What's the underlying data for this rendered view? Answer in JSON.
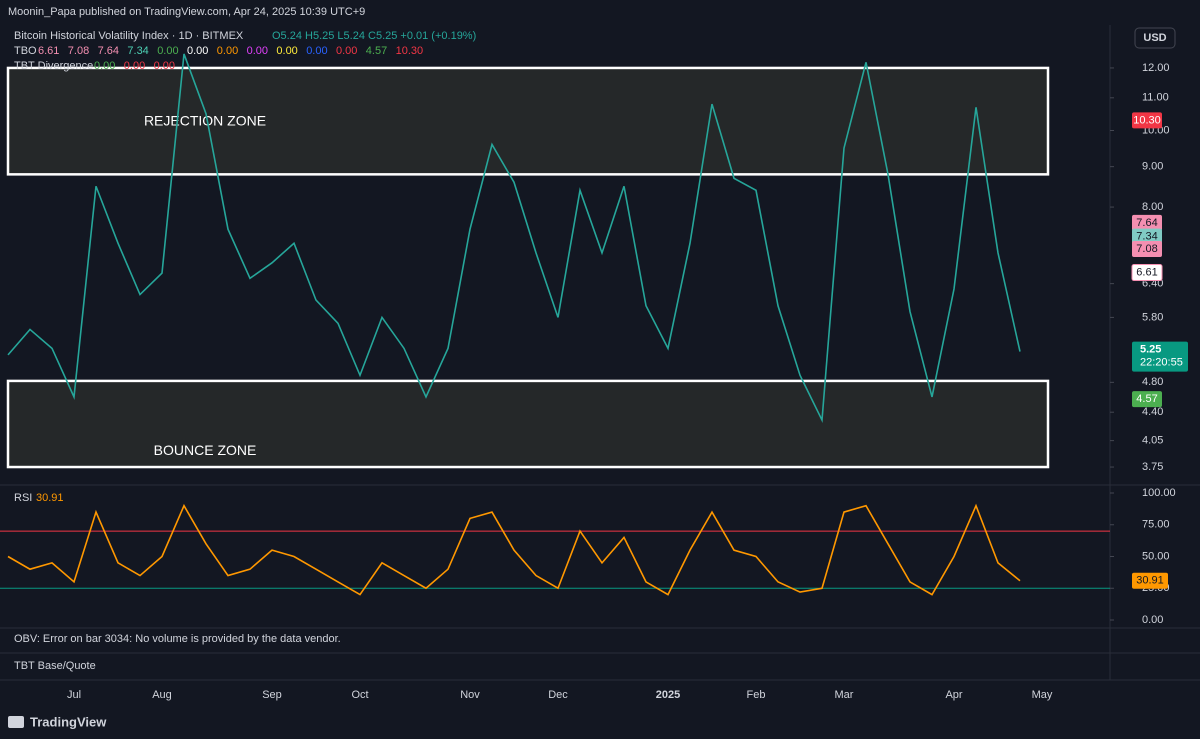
{
  "header": {
    "publisher": "Moonin_Papa published on TradingView.com, Apr 24, 2025 10:39 UTC+9",
    "currency": "USD",
    "footer": "TradingView"
  },
  "panes": {
    "obv": "OBV: Error on bar 3034: No volume is provided by the data vendor.",
    "tbt": "TBT Base/Quote"
  },
  "chart_data": [
    {
      "type": "line",
      "title": "Bitcoin Historical Volatility Index · 1D · BITMEX",
      "ohlc": "O5.24 H5.25 L5.24 C5.25 +0.01 (+0.19%)",
      "indicators": [
        {
          "name": "TBO",
          "readings": [
            "6.61",
            "7.08",
            "7.64",
            "7.34",
            "0.00",
            "0.00",
            "0.00",
            "0.00",
            "0.00",
            "0.00",
            "0.00",
            "4.57",
            "10.30"
          ],
          "colors": [
            "#f48fb1",
            "#f48fb1",
            "#f48fb1",
            "#4dd0b4",
            "#4caf50",
            "#ffffff",
            "#ff9800",
            "#e040fb",
            "#ffeb3b",
            "#2962ff",
            "#f23645",
            "#4caf50",
            "#f23645"
          ]
        },
        {
          "name": "TBT Divergence",
          "readings": [
            "0.00",
            "0.00",
            "0.00"
          ],
          "colors": [
            "#4caf50",
            "#f23645",
            "#f23645"
          ]
        }
      ],
      "categories": [
        null,
        null,
        null,
        "Jul",
        null,
        null,
        null,
        "Aug",
        null,
        null,
        null,
        null,
        "Sep",
        null,
        null,
        null,
        "Oct",
        null,
        null,
        null,
        null,
        "Nov",
        null,
        null,
        null,
        "Dec",
        null,
        null,
        null,
        null,
        "2025",
        null,
        null,
        null,
        "Feb",
        null,
        null,
        null,
        "Mar",
        null,
        null,
        null,
        null,
        "Apr",
        null,
        null,
        null,
        "May",
        null
      ],
      "values": [
        5.2,
        5.6,
        5.3,
        4.6,
        8.5,
        7.2,
        6.2,
        6.6,
        12.5,
        10.5,
        7.5,
        6.5,
        6.8,
        7.2,
        6.1,
        5.7,
        4.9,
        5.8,
        5.3,
        4.6,
        5.3,
        7.5,
        9.6,
        8.6,
        7.0,
        5.8,
        8.4,
        7.0,
        8.5,
        6.0,
        5.3,
        7.2,
        10.8,
        8.7,
        8.4,
        6.0,
        4.9,
        4.3,
        9.5,
        12.2,
        8.8,
        5.9,
        4.6,
        6.3,
        10.7,
        7.0,
        5.25,
        null,
        null
      ],
      "color": "#26a69a",
      "countdown": "22:20:55",
      "log_scale": true,
      "ylim": [
        3.59,
        13.6
      ],
      "yticks": [
        3.75,
        4.05,
        {
          "value": 4.4,
          "label": "4.40"
        },
        {
          "value": 4.8,
          "label": "4.80"
        },
        {
          "value": 5.8,
          "label": "5.80"
        },
        {
          "value": 6.4,
          "label": "6.40"
        },
        {
          "value": 8,
          "label": "8.00"
        },
        {
          "value": 9,
          "label": "9.00"
        },
        {
          "value": 10,
          "label": "10.00"
        },
        {
          "value": 11,
          "label": "11.00"
        },
        {
          "value": 12,
          "label": "12.00"
        }
      ],
      "zones": [
        {
          "label": "REJECTION ZONE",
          "range": [
            8.8,
            12
          ]
        },
        {
          "label": "BOUNCE ZONE",
          "range": [
            3.75,
            4.82
          ]
        }
      ],
      "price_labels": {
        "values": [
          10.3,
          7.64,
          7.34,
          7.08,
          6.61,
          4.57
        ],
        "value_labels": [
          "10.30",
          "7.64",
          "7.34",
          "7.08",
          "6.61",
          "4.57"
        ],
        "colors": [
          "#f23645",
          "#f48fb1",
          "#80cbc4",
          "#f48fb1",
          "#ffffff",
          "#4caf50"
        ],
        "text_colors": [
          "#ffffff",
          "#131722",
          "#131722",
          "#131722",
          "#131722",
          "#ffffff"
        ]
      }
    },
    {
      "type": "line",
      "title": "RSI",
      "color": "#ff9800",
      "values": [
        50,
        40,
        45,
        30,
        85,
        45,
        35,
        50,
        90,
        60,
        35,
        40,
        55,
        50,
        40,
        30,
        20,
        45,
        35,
        25,
        40,
        80,
        85,
        55,
        35,
        25,
        70,
        45,
        65,
        30,
        20,
        55,
        85,
        55,
        50,
        30,
        22,
        25,
        85,
        90,
        60,
        30,
        20,
        50,
        90,
        45,
        30.91,
        null,
        null
      ],
      "ylim": [
        0,
        100
      ],
      "yticks": [
        {
          "value": 0,
          "label": "0.00"
        },
        {
          "value": 25,
          "label": "25.00"
        },
        {
          "value": 50,
          "label": "50.00"
        },
        {
          "value": 75,
          "label": "75.00"
        },
        {
          "value": 100,
          "label": "100.00"
        }
      ],
      "levels": [
        {
          "value": 70,
          "color": "#f23645"
        },
        {
          "value": 25,
          "color": "#089981"
        }
      ]
    }
  ]
}
